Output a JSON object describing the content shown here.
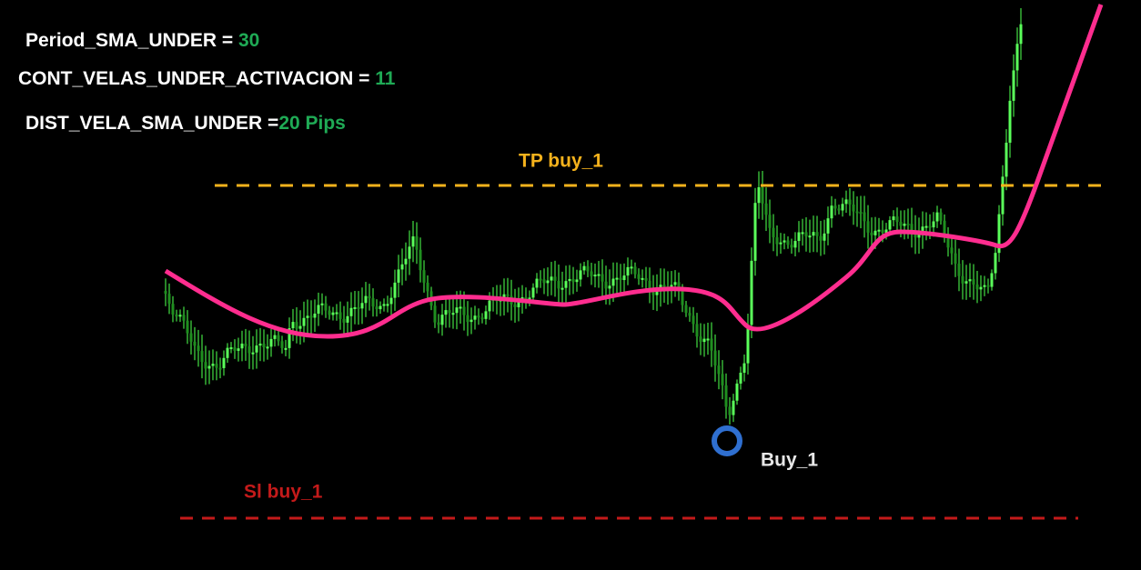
{
  "parameters": [
    {
      "name": "Period_SMA_UNDER =",
      "value": "30"
    },
    {
      "name": "CONT_VELAS_UNDER_ACTIVACION =",
      "value": "11"
    },
    {
      "name": "DIST_VELA_SMA_UNDER =",
      "value": "20 Pips"
    }
  ],
  "levels": {
    "take_profit": "TP buy_1",
    "stop_loss": "Sl buy_1",
    "entry": "Buy_1"
  }
}
